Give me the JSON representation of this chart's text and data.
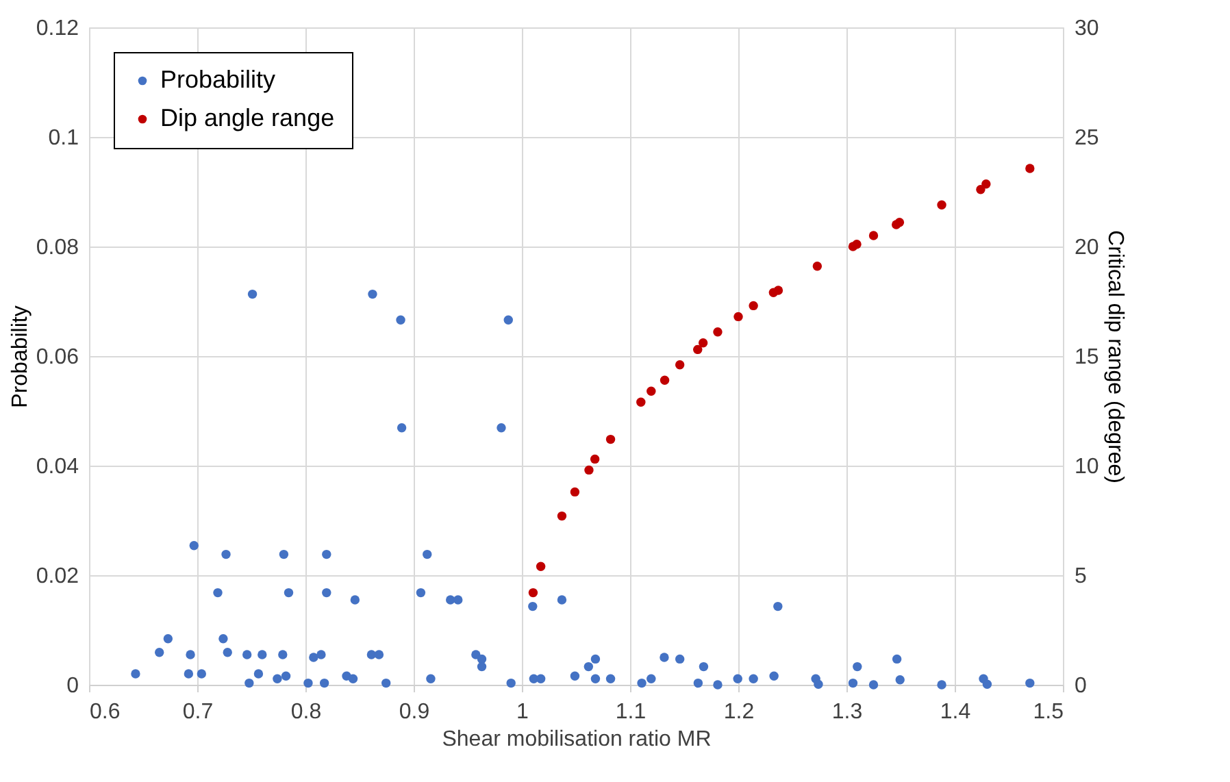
{
  "chart_data": {
    "type": "scatter",
    "xlabel": "Shear mobilisation ratio MR",
    "ylabel": "Probability",
    "y2label": "Critical dip range (degree)",
    "xlim": [
      0.6,
      1.5
    ],
    "xticks": [
      0.6,
      0.7,
      0.8,
      0.9,
      1,
      1.1,
      1.2,
      1.3,
      1.4,
      1.5
    ],
    "ylim": [
      0,
      0.12
    ],
    "yticks": [
      0,
      0.02,
      0.04,
      0.06,
      0.08,
      0.1,
      0.12
    ],
    "y2lim": [
      0,
      30
    ],
    "y2ticks": [
      0,
      5,
      10,
      15,
      20,
      25,
      30
    ],
    "grid": true,
    "legend": "top left",
    "marker": "circle",
    "series": [
      {
        "name": "Probability",
        "color": "#4472c4",
        "x": [
          0.751,
          0.862,
          0.888,
          0.9875,
          0.889,
          0.981,
          1.01,
          1.037,
          1.2366,
          0.697,
          0.7266,
          0.78,
          0.8195,
          0.9125,
          0.719,
          0.7845,
          0.8195,
          0.8458,
          0.9066,
          0.934,
          0.941,
          0.673,
          0.665,
          0.6937,
          0.724,
          0.728,
          0.746,
          0.76,
          0.779,
          0.8075,
          0.8145,
          0.861,
          0.868,
          0.9575,
          0.963,
          0.963,
          0.643,
          0.692,
          0.704,
          0.748,
          0.7566,
          0.774,
          0.782,
          0.8025,
          0.8175,
          0.838,
          0.844,
          0.8745,
          0.9158,
          0.99,
          1.011,
          1.0175,
          1.049,
          1.0616,
          1.068,
          1.068,
          1.082,
          1.1108,
          1.1195,
          1.1316,
          1.146,
          1.1629,
          1.168,
          1.181,
          1.1995,
          1.214,
          1.233,
          1.2716,
          1.274,
          1.306,
          1.31,
          1.325,
          1.3466,
          1.3495,
          1.388,
          1.4266,
          1.43,
          1.4695
        ],
        "values": [
          0.0713,
          0.0713,
          0.0666,
          0.0666,
          0.0469,
          0.0469,
          0.0143,
          0.0155,
          0.0143,
          0.0254,
          0.0238,
          0.0238,
          0.0238,
          0.0238,
          0.0168,
          0.0168,
          0.0168,
          0.0155,
          0.0168,
          0.0155,
          0.0155,
          0.0084,
          0.0059,
          0.0055,
          0.0084,
          0.0059,
          0.0055,
          0.0055,
          0.0055,
          0.005,
          0.0055,
          0.0055,
          0.0055,
          0.0055,
          0.0047,
          0.0033,
          0.002,
          0.002,
          0.002,
          0.0003,
          0.002,
          0.0011,
          0.0016,
          0.0003,
          0.0003,
          0.0016,
          0.0011,
          0.0003,
          0.0011,
          0.0003,
          0.0011,
          0.0011,
          0.0016,
          0.0033,
          0.0047,
          0.0011,
          0.0011,
          0.0003,
          0.0011,
          0.005,
          0.0047,
          0.0003,
          0.0033,
          0.0,
          0.0011,
          0.0011,
          0.0016,
          0.0011,
          0.0001,
          0.0003,
          0.0033,
          0.0,
          0.0047,
          0.0009,
          0.0,
          0.0011,
          0.0001,
          0.0003
        ]
      },
      {
        "name": "Dip angle range",
        "color": "#c00000",
        "axis": "y2",
        "x": [
          1.0104,
          1.0175,
          1.037,
          1.049,
          1.062,
          1.0675,
          1.082,
          1.11,
          1.1195,
          1.132,
          1.146,
          1.1625,
          1.1675,
          1.181,
          1.2,
          1.214,
          1.2325,
          1.237,
          1.273,
          1.306,
          1.3095,
          1.325,
          1.346,
          1.349,
          1.388,
          1.424,
          1.429,
          1.4695
        ],
        "values": [
          4.2,
          5.4,
          7.7,
          8.8,
          9.8,
          10.3,
          11.2,
          12.9,
          13.4,
          13.9,
          14.6,
          15.3,
          15.6,
          16.1,
          16.8,
          17.3,
          17.9,
          18.0,
          19.1,
          20.0,
          20.1,
          20.5,
          21.0,
          21.1,
          21.9,
          22.6,
          22.85,
          23.56
        ]
      }
    ]
  }
}
